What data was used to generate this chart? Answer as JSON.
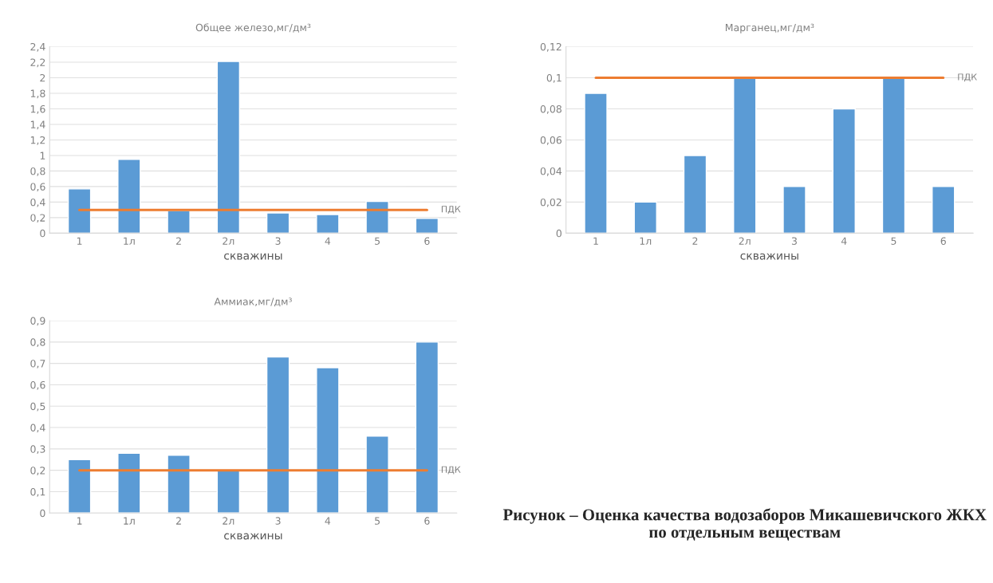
{
  "chart_data": [
    {
      "type": "bar",
      "title": "Общее железо,мг/дм³",
      "xlabel": "скважины",
      "categories": [
        "1",
        "1л",
        "2",
        "2л",
        "3",
        "4",
        "5",
        "6"
      ],
      "values": [
        0.57,
        0.95,
        0.29,
        2.21,
        0.26,
        0.24,
        0.41,
        0.19
      ],
      "color": "#5b9bd5",
      "ylim": [
        0,
        2.4
      ],
      "yticks": [
        0,
        {
          "value": 0.2,
          "label": "0,2"
        },
        {
          "value": 0.4,
          "label": "0,4"
        },
        {
          "value": 0.6,
          "label": "0,6"
        },
        {
          "value": 0.8,
          "label": "0,8"
        },
        1,
        {
          "value": 1.2,
          "label": "1,2"
        },
        {
          "value": 1.4,
          "label": "1,4"
        },
        {
          "value": 1.6,
          "label": "1,6"
        },
        {
          "value": 1.8,
          "label": "1,8"
        },
        2,
        {
          "value": 2.2,
          "label": "2,2"
        },
        {
          "value": 2.4,
          "label": "2,4"
        }
      ],
      "grid": "y",
      "ref_lines": [
        {
          "axis": "y",
          "value": 0.3,
          "label": "ПДК",
          "color": "#ed7d31"
        }
      ]
    },
    {
      "type": "bar",
      "title": "Марганец,мг/дм³",
      "xlabel": "скважины",
      "categories": [
        "1",
        "1л",
        "2",
        "2л",
        "3",
        "4",
        "5",
        "6"
      ],
      "values": [
        0.09,
        0.02,
        0.05,
        0.1,
        0.03,
        0.08,
        0.1,
        0.03
      ],
      "color": "#5b9bd5",
      "ylim": [
        0,
        0.12
      ],
      "yticks": [
        0,
        {
          "value": 0.02,
          "label": "0,02"
        },
        {
          "value": 0.04,
          "label": "0,04"
        },
        {
          "value": 0.06,
          "label": "0,06"
        },
        {
          "value": 0.08,
          "label": "0,08"
        },
        {
          "value": 0.1,
          "label": "0,1"
        },
        {
          "value": 0.12,
          "label": "0,12"
        }
      ],
      "grid": "y",
      "ref_lines": [
        {
          "axis": "y",
          "value": 0.1,
          "label": "ПДК",
          "color": "#ed7d31"
        }
      ]
    },
    {
      "type": "bar",
      "title": "Аммиак,мг/дм³",
      "xlabel": "скважины",
      "categories": [
        "1",
        "1л",
        "2",
        "2л",
        "3",
        "4",
        "5",
        "6"
      ],
      "values": [
        0.25,
        0.28,
        0.27,
        0.2,
        0.73,
        0.68,
        0.36,
        0.8
      ],
      "color": "#5b9bd5",
      "ylim": [
        0,
        0.9
      ],
      "yticks": [
        0,
        {
          "value": 0.1,
          "label": "0,1"
        },
        {
          "value": 0.2,
          "label": "0,2"
        },
        {
          "value": 0.3,
          "label": "0,3"
        },
        {
          "value": 0.4,
          "label": "0,4"
        },
        {
          "value": 0.5,
          "label": "0,5"
        },
        {
          "value": 0.6,
          "label": "0,6"
        },
        {
          "value": 0.7,
          "label": "0,7"
        },
        {
          "value": 0.8,
          "label": "0,8"
        },
        {
          "value": 0.9,
          "label": "0,9"
        }
      ],
      "grid": "y",
      "ref_lines": [
        {
          "axis": "y",
          "value": 0.2,
          "label": "ПДК",
          "color": "#ed7d31"
        }
      ],
      "annotations": [
        "Рисунок – Оценка качества водозаборов Микашевичского ЖКХ по отдельным веществам"
      ]
    }
  ]
}
